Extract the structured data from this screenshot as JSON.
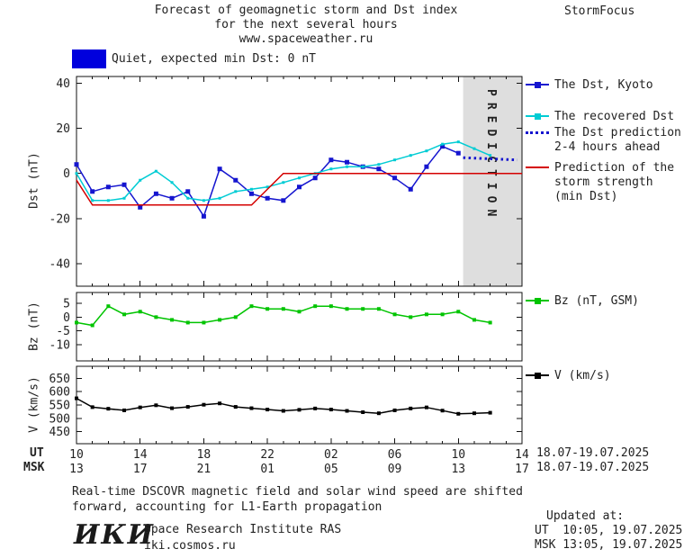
{
  "header": {
    "line1": "Forecast of geomagnetic storm and Dst index",
    "line2": "for the next several hours",
    "line3": "www.spaceweather.ru",
    "brand": "StormFocus"
  },
  "banner": {
    "label": "Quiet, expected min Dst: 0 nT",
    "color": "#0000dd"
  },
  "legend": {
    "dst_kyoto": "The Dst, Kyoto",
    "recovered": "The recovered Dst",
    "prediction_line1": "The Dst prediction",
    "prediction_line2": "2-4 hours ahead",
    "strength_line1": "Prediction of the",
    "strength_line2": "storm strength",
    "strength_line3": "(min Dst)",
    "bz": "Bz (nT, GSM)",
    "v": "V (km/s)"
  },
  "xaxis": {
    "hours_range": [
      10,
      38
    ],
    "ticks_hours": [
      10,
      14,
      18,
      22,
      26,
      30,
      34,
      38
    ],
    "ut_labels": [
      "10",
      "14",
      "18",
      "22",
      "02",
      "06",
      "10",
      "14"
    ],
    "msk_labels": [
      "13",
      "17",
      "21",
      "01",
      "05",
      "09",
      "13",
      "17"
    ],
    "ut_prefix": "UT",
    "msk_prefix": "MSK",
    "ut_date": "18.07-19.07.2025",
    "msk_date": "18.07-19.07.2025"
  },
  "chart_data": [
    {
      "type": "line",
      "ylabel": "Dst (nT)",
      "ylim": [
        -50,
        43
      ],
      "yticks": [
        40,
        20,
        0,
        -20,
        -40
      ],
      "prediction_zone": {
        "x_start": 34.3,
        "x_end": 38,
        "label": "PREDICTION"
      },
      "series": [
        {
          "id": "dst-kyoto",
          "name": "The Dst, Kyoto",
          "color": "#1515cf",
          "marker": "square",
          "marker_size": 5,
          "x_start": 10,
          "values": [
            4,
            -8,
            -6,
            -5,
            -15,
            -9,
            -11,
            -8,
            -19,
            2,
            -3,
            -9,
            -11,
            -12,
            -6,
            -2,
            6,
            5,
            3,
            2,
            -2,
            -7,
            3,
            12,
            9
          ]
        },
        {
          "id": "recovered-dst",
          "name": "The recovered Dst",
          "color": "#00ccd4",
          "marker": "square",
          "marker_size": 3,
          "x_start": 10,
          "values": [
            0,
            -12,
            -12,
            -11,
            -3,
            1,
            -4,
            -11,
            -12,
            -11,
            -8,
            -7,
            -6,
            -4,
            -2,
            0,
            2,
            3,
            3,
            4,
            6,
            8,
            10,
            13,
            14,
            11,
            8
          ]
        },
        {
          "id": "dst-prediction",
          "name": "The Dst prediction 2-4 hours ahead",
          "color": "#1515cf",
          "style": "dotted",
          "x": [
            34.3,
            37.7
          ],
          "values": [
            7,
            6
          ]
        },
        {
          "id": "storm-strength",
          "name": "Prediction of the storm strength (min Dst)",
          "color": "#d40000",
          "x": [
            10,
            11,
            21,
            23,
            38
          ],
          "values": [
            -3,
            -14,
            -14,
            0,
            0
          ]
        }
      ]
    },
    {
      "type": "line",
      "ylabel": "Bz (nT)",
      "ylim": [
        -16,
        9
      ],
      "yticks": [
        5,
        0,
        -5,
        -10
      ],
      "series": [
        {
          "id": "bz",
          "name": "Bz (nT, GSM)",
          "color": "#00c400",
          "marker": "square",
          "marker_size": 4,
          "x_start": 10,
          "values": [
            -2,
            -3,
            4,
            1,
            2,
            0,
            -1,
            -2,
            -2,
            -1,
            0,
            4,
            3,
            3,
            2,
            4,
            4,
            3,
            3,
            3,
            1,
            0,
            1,
            1,
            2,
            -1,
            -2
          ]
        }
      ]
    },
    {
      "type": "line",
      "ylabel": "V (km/s)",
      "ylim": [
        405,
        695
      ],
      "yticks": [
        650,
        600,
        550,
        500,
        450
      ],
      "series": [
        {
          "id": "v",
          "name": "V (km/s)",
          "color": "#000000",
          "marker": "square",
          "marker_size": 4,
          "x_start": 10,
          "values": [
            575,
            542,
            536,
            530,
            541,
            549,
            538,
            543,
            551,
            556,
            543,
            538,
            533,
            528,
            532,
            537,
            533,
            528,
            523,
            519,
            530,
            537,
            541,
            529,
            517,
            519,
            521
          ]
        }
      ]
    }
  ],
  "footer": {
    "line1": "Real-time DSCOVR magnetic field and solar wind speed are shifted",
    "line2": "forward, accounting for L1-Earth propagation"
  },
  "updated": {
    "label": "Updated at:",
    "ut": "UT  10:05, 19.07.2025",
    "msk": "MSK 13:05, 19.07.2025"
  },
  "logo": {
    "text": "ИКИ",
    "institute": "Space Research Institute RAS",
    "site": "iki.cosmos.ru"
  }
}
